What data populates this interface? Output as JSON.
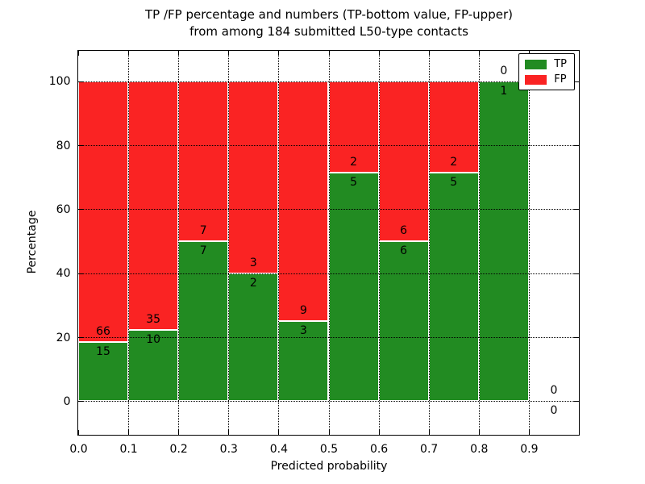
{
  "chart_data": {
    "type": "bar",
    "stacked": true,
    "values_are": "percent of bin total (bars normalized to 100%)",
    "title": "TP /FP percentage and numbers (TP-bottom value, FP-upper)\nfrom among 184 submitted L50-type contacts",
    "title_line1": "TP /FP percentage and numbers (TP-bottom value, FP-upper)",
    "title_line2": "from among 184 submitted L50-type contacts",
    "xlabel": "Predicted probability",
    "ylabel": "Percentage",
    "total_contacts": 184,
    "bin_starts": [
      0.0,
      0.1,
      0.2,
      0.3,
      0.4,
      0.5,
      0.6,
      0.7,
      0.8,
      0.9
    ],
    "bin_width": 0.1,
    "series": [
      {
        "name": "TP",
        "color": "#228B22",
        "counts": [
          15,
          10,
          7,
          2,
          3,
          5,
          6,
          5,
          1,
          0
        ],
        "percent": [
          18.5,
          22.2,
          50.0,
          40.0,
          25.0,
          71.4,
          50.0,
          71.4,
          100.0,
          0.0
        ]
      },
      {
        "name": "FP",
        "color": "#FA2323",
        "counts": [
          66,
          35,
          7,
          3,
          9,
          2,
          6,
          2,
          0,
          0
        ],
        "percent": [
          81.5,
          77.8,
          50.0,
          60.0,
          75.0,
          28.6,
          50.0,
          28.6,
          0.0,
          0.0
        ]
      }
    ],
    "xtick_labels": [
      "0.0",
      "0.1",
      "0.2",
      "0.3",
      "0.4",
      "0.5",
      "0.6",
      "0.7",
      "0.8",
      "0.9"
    ],
    "yticks": [
      0,
      20,
      40,
      60,
      80,
      100
    ],
    "xlim": [
      0.0,
      1.0
    ],
    "ylim": [
      -10.5,
      109.5
    ],
    "grid": "dotted black, drawn over bars",
    "bar_edge_color": "#ffffff",
    "legend": {
      "position": "upper right",
      "entries": [
        "TP",
        "FP"
      ]
    },
    "annotation_rule": "FP count above green/red boundary, TP count below it, per bin"
  }
}
